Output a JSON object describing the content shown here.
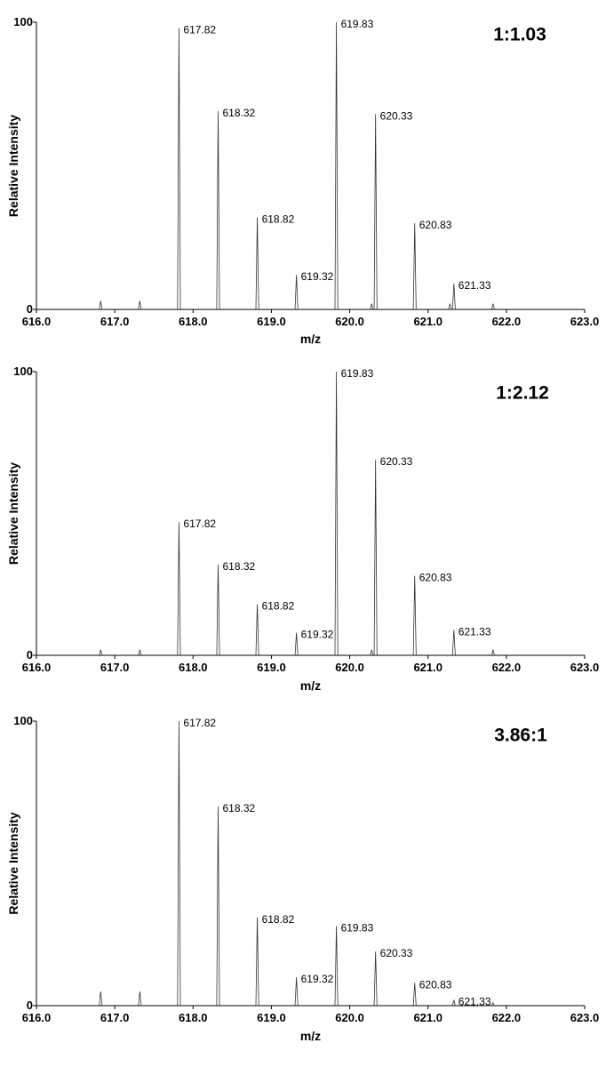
{
  "chart_data": [
    {
      "type": "line",
      "ratio": "1:1.03",
      "xlabel": "m/z",
      "ylabel": "Relative Intensity",
      "xlim": [
        616.0,
        623.0
      ],
      "ylim": [
        0,
        100
      ],
      "x_ticks": [
        "616.0",
        "617.0",
        "618.0",
        "619.0",
        "620.0",
        "621.0",
        "622.0",
        "623.0"
      ],
      "y_ticks": [
        "0",
        "100"
      ],
      "peaks": [
        {
          "x": 616.82,
          "y": 3
        },
        {
          "x": 617.32,
          "y": 3
        },
        {
          "x": 617.82,
          "y": 98,
          "label": "617.82"
        },
        {
          "x": 618.32,
          "y": 69,
          "label": "618.32"
        },
        {
          "x": 618.82,
          "y": 32,
          "label": "618.82"
        },
        {
          "x": 619.32,
          "y": 12,
          "label": "619.32"
        },
        {
          "x": 619.83,
          "y": 100,
          "label": "619.83"
        },
        {
          "x": 620.28,
          "y": 2
        },
        {
          "x": 620.33,
          "y": 68,
          "label": "620.33"
        },
        {
          "x": 620.83,
          "y": 30,
          "label": "620.83"
        },
        {
          "x": 621.28,
          "y": 2
        },
        {
          "x": 621.33,
          "y": 9,
          "label": "621.33"
        },
        {
          "x": 621.83,
          "y": 2
        }
      ]
    },
    {
      "type": "line",
      "ratio": "1:2.12",
      "xlabel": "m/z",
      "ylabel": "Relative Intensity",
      "xlim": [
        616.0,
        623.0
      ],
      "ylim": [
        0,
        100
      ],
      "x_ticks": [
        "616.0",
        "617.0",
        "618.0",
        "619.0",
        "620.0",
        "621.0",
        "622.0",
        "623.0"
      ],
      "y_ticks": [
        "0",
        "100"
      ],
      "peaks": [
        {
          "x": 616.82,
          "y": 2
        },
        {
          "x": 617.32,
          "y": 2
        },
        {
          "x": 617.82,
          "y": 47,
          "label": "617.82"
        },
        {
          "x": 618.32,
          "y": 32,
          "label": "618.32"
        },
        {
          "x": 618.82,
          "y": 18,
          "label": "618.82"
        },
        {
          "x": 619.32,
          "y": 8,
          "label": "619.32"
        },
        {
          "x": 619.83,
          "y": 100,
          "label": "619.83"
        },
        {
          "x": 620.28,
          "y": 2
        },
        {
          "x": 620.33,
          "y": 69,
          "label": "620.33"
        },
        {
          "x": 620.83,
          "y": 28,
          "label": "620.83"
        },
        {
          "x": 621.33,
          "y": 9,
          "label": "621.33"
        },
        {
          "x": 621.83,
          "y": 2
        }
      ]
    },
    {
      "type": "line",
      "ratio": "3.86:1",
      "xlabel": "m/z",
      "ylabel": "Relative Intensity",
      "xlim": [
        616.0,
        623.0
      ],
      "ylim": [
        0,
        100
      ],
      "x_ticks": [
        "616.0",
        "617.0",
        "618.0",
        "619.0",
        "620.0",
        "621.0",
        "622.0",
        "623.0"
      ],
      "y_ticks": [
        "0",
        "100"
      ],
      "peaks": [
        {
          "x": 616.82,
          "y": 5
        },
        {
          "x": 617.32,
          "y": 5
        },
        {
          "x": 617.82,
          "y": 100,
          "label": "617.82"
        },
        {
          "x": 618.32,
          "y": 70,
          "label": "618.32"
        },
        {
          "x": 618.82,
          "y": 31,
          "label": "618.82"
        },
        {
          "x": 619.32,
          "y": 10,
          "label": "619.32"
        },
        {
          "x": 619.83,
          "y": 28,
          "label": "619.83"
        },
        {
          "x": 620.33,
          "y": 19,
          "label": "620.33"
        },
        {
          "x": 620.83,
          "y": 8,
          "label": "620.83"
        },
        {
          "x": 621.33,
          "y": 2,
          "label": "621.33"
        },
        {
          "x": 621.83,
          "y": 1
        }
      ]
    }
  ]
}
